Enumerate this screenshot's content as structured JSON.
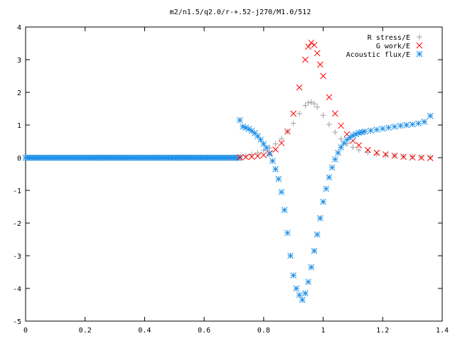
{
  "chart_data": {
    "type": "scatter",
    "title": "m2/n1.5/q2.0/r-+.52-j270/M1.0/512",
    "xlabel": "",
    "ylabel": "",
    "xlim": [
      0,
      1.4
    ],
    "ylim": [
      -5,
      4
    ],
    "grid": false,
    "legend_position": "top-right",
    "x_ticks": [
      "0",
      "0.2",
      "0.4",
      "0.6",
      "0.8",
      "1",
      "1.2",
      "1.4"
    ],
    "y_ticks": [
      "4",
      "3",
      "2",
      "1",
      "0",
      "-1",
      "-2",
      "-3",
      "-4",
      "-5"
    ],
    "series": [
      {
        "name": "R stress/E",
        "marker": "plus",
        "color": "#a0a0a0",
        "x": [
          0.72,
          0.74,
          0.76,
          0.78,
          0.8,
          0.82,
          0.84,
          0.86,
          0.88,
          0.9,
          0.92,
          0.94,
          0.95,
          0.96,
          0.97,
          0.98,
          1.0,
          1.02,
          1.04,
          1.06,
          1.08,
          1.1,
          1.12,
          1.15,
          1.18,
          1.21,
          1.24,
          1.27,
          1.3,
          1.33,
          1.36
        ],
        "y": [
          0.03,
          0.06,
          0.1,
          0.15,
          0.22,
          0.3,
          0.42,
          0.58,
          0.8,
          1.05,
          1.35,
          1.6,
          1.68,
          1.7,
          1.65,
          1.55,
          1.3,
          1.02,
          0.78,
          0.58,
          0.43,
          0.32,
          0.24,
          0.16,
          0.11,
          0.08,
          0.06,
          0.04,
          0.03,
          0.02,
          0.02
        ]
      },
      {
        "name": "G work/E",
        "marker": "cross",
        "color": "#ff0000",
        "x": [
          0.72,
          0.74,
          0.76,
          0.78,
          0.8,
          0.82,
          0.84,
          0.86,
          0.88,
          0.9,
          0.92,
          0.94,
          0.95,
          0.96,
          0.97,
          0.98,
          0.99,
          1.0,
          1.02,
          1.04,
          1.06,
          1.08,
          1.1,
          1.12,
          1.15,
          1.18,
          1.21,
          1.24,
          1.27,
          1.3,
          1.33,
          1.36
        ],
        "y": [
          0.01,
          0.02,
          0.03,
          0.05,
          0.08,
          0.14,
          0.25,
          0.45,
          0.8,
          1.35,
          2.15,
          3.0,
          3.4,
          3.52,
          3.45,
          3.2,
          2.85,
          2.5,
          1.85,
          1.35,
          0.98,
          0.72,
          0.52,
          0.38,
          0.24,
          0.15,
          0.1,
          0.06,
          0.03,
          0.01,
          0.0,
          -0.01
        ]
      },
      {
        "name": "Acoustic flux/E",
        "marker": "star",
        "color": "#1e90e8",
        "x": [
          0.72,
          0.73,
          0.74,
          0.75,
          0.76,
          0.77,
          0.78,
          0.79,
          0.8,
          0.81,
          0.82,
          0.83,
          0.84,
          0.85,
          0.86,
          0.87,
          0.88,
          0.89,
          0.9,
          0.91,
          0.92,
          0.93,
          0.94,
          0.95,
          0.96,
          0.97,
          0.98,
          0.99,
          1.0,
          1.01,
          1.02,
          1.03,
          1.04,
          1.05,
          1.06,
          1.07,
          1.08,
          1.09,
          1.1,
          1.11,
          1.12,
          1.13,
          1.14,
          1.16,
          1.18,
          1.2,
          1.22,
          1.24,
          1.26,
          1.28,
          1.3,
          1.32,
          1.34,
          1.36
        ],
        "y": [
          1.15,
          0.95,
          0.92,
          0.88,
          0.82,
          0.75,
          0.66,
          0.55,
          0.42,
          0.3,
          0.12,
          -0.1,
          -0.35,
          -0.65,
          -1.05,
          -1.6,
          -2.3,
          -3.0,
          -3.6,
          -4.0,
          -4.2,
          -4.35,
          -4.15,
          -3.8,
          -3.35,
          -2.85,
          -2.35,
          -1.85,
          -1.35,
          -0.95,
          -0.6,
          -0.3,
          -0.05,
          0.15,
          0.32,
          0.45,
          0.55,
          0.62,
          0.68,
          0.72,
          0.76,
          0.78,
          0.8,
          0.83,
          0.86,
          0.89,
          0.92,
          0.95,
          0.98,
          1.0,
          1.02,
          1.05,
          1.1,
          1.28
        ]
      }
    ],
    "baseline": {
      "x_start": 0.0,
      "x_end": 0.72,
      "y": 0
    }
  }
}
